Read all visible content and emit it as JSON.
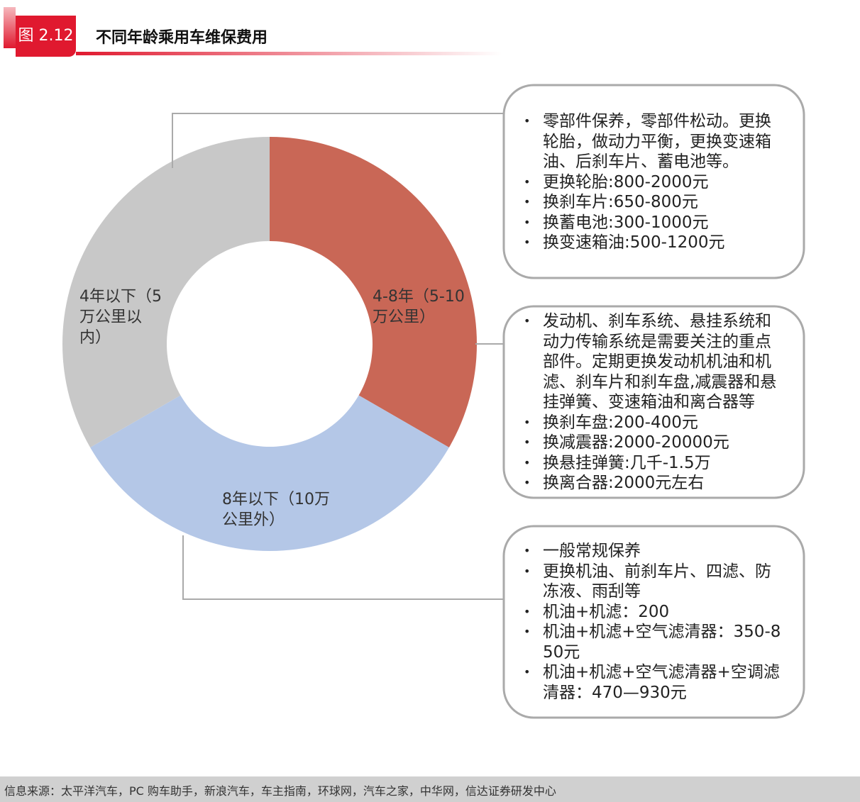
{
  "figure_label": "图 2.12",
  "chart_data": {
    "type": "pie",
    "donut": true,
    "title": "不同年龄乘用车维保费用",
    "categories": [
      "4-8年（5-10万公里）",
      "8年以下（10万公里外）",
      "4年以下（5万公里以内）"
    ],
    "values": [
      33.3,
      33.3,
      33.3
    ],
    "colors": [
      "#c96756",
      "#b4c7e7",
      "#c8c8c8"
    ],
    "callouts": [
      [
        "零部件保养，零部件松动。更换轮胎，做动力平衡，更换变速箱油、后刹车片、蓄电池等。",
        "更换轮胎:800-2000元",
        "换刹车片:650-800元",
        "换蓄电池:300-1000元",
        "换变速箱油:500-1200元"
      ],
      [
        "发动机、刹车系统、悬挂系统和动力传输系统是需要关注的重点部件。定期更换发动机机油和机滤、刹车片和刹车盘,减震器和悬挂弹簧、变速箱油和离合器等",
        "换刹车盘:200-400元",
        "换减震器:2000-20000元",
        "换悬挂弹簧:几千-1.5万",
        "换离合器:2000元左右"
      ],
      [
        "一般常规保养",
        "更换机油、前刹车片、四滤、防冻液、雨刮等",
        "机油+机滤：200",
        "机油+机滤+空气滤清器：350-850元",
        "机油+机滤+空气滤清器+空调滤清器：470—930元"
      ]
    ]
  },
  "source": "信息来源：太平洋汽车，PC 购车助手，新浪汽车，车主指南，环球网，汽车之家，中华网，信达证券研发中心"
}
